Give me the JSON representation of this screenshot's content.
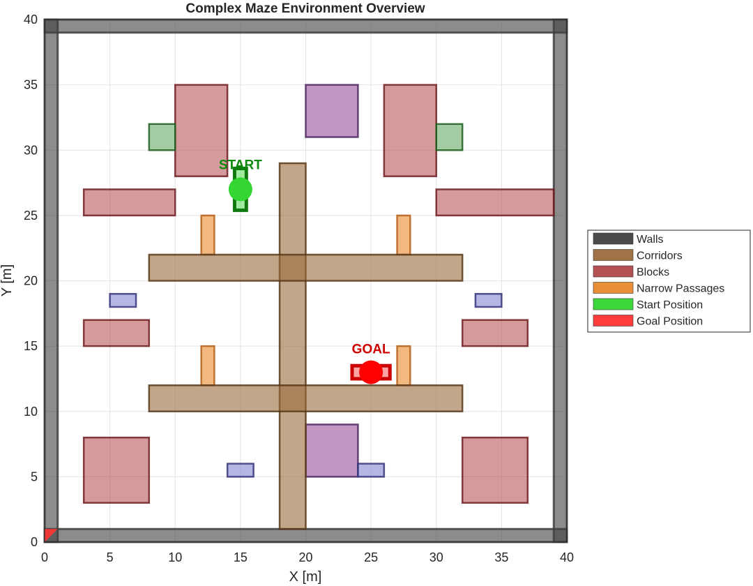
{
  "title": "Complex Maze Environment Overview",
  "axes": {
    "xlabel": "X [m]",
    "ylabel": "Y [m]",
    "xlim": [
      0,
      40
    ],
    "ylim": [
      0,
      40
    ],
    "xticks": [
      0,
      5,
      10,
      15,
      20,
      25,
      30,
      35,
      40
    ],
    "yticks": [
      0,
      5,
      10,
      15,
      20,
      25,
      30,
      35,
      40
    ],
    "grid": true
  },
  "colors": {
    "walls": "#404040",
    "corridors": "#9a6b3c",
    "blocks": "#b0474a",
    "narrow": "#e8892c",
    "start": "#33d633",
    "goal": "#ff3333",
    "purple": "#9b4f9b",
    "blue": "#7a7ad0",
    "green_block": "#4a9a4a",
    "start_text": "#0a8a0a",
    "goal_text": "#cc0000"
  },
  "legend": {
    "placement": "right",
    "items": [
      {
        "label": "Walls",
        "color": "#404040"
      },
      {
        "label": "Corridors",
        "color": "#9a6b3c"
      },
      {
        "label": "Blocks",
        "color": "#b0474a"
      },
      {
        "label": "Narrow Passages",
        "color": "#e8892c"
      },
      {
        "label": "Start Position",
        "color": "#33d633"
      },
      {
        "label": "Goal Position",
        "color": "#ff3333"
      }
    ]
  },
  "chart_data": {
    "type": "diagram",
    "walls": [
      {
        "x": 0,
        "y": 0,
        "w": 40,
        "h": 1
      },
      {
        "x": 0,
        "y": 39,
        "w": 40,
        "h": 1
      },
      {
        "x": 0,
        "y": 0,
        "w": 1,
        "h": 40
      },
      {
        "x": 39,
        "y": 0,
        "w": 1,
        "h": 40
      }
    ],
    "corridors": [
      {
        "x": 18,
        "y": 1,
        "w": 2,
        "h": 28
      },
      {
        "x": 8,
        "y": 20,
        "w": 24,
        "h": 2
      },
      {
        "x": 8,
        "y": 10,
        "w": 24,
        "h": 2
      }
    ],
    "blocks": [
      {
        "x": 10,
        "y": 28,
        "w": 4,
        "h": 7
      },
      {
        "x": 26,
        "y": 28,
        "w": 4,
        "h": 7
      },
      {
        "x": 3,
        "y": 25,
        "w": 7,
        "h": 2
      },
      {
        "x": 30,
        "y": 25,
        "w": 9,
        "h": 2
      },
      {
        "x": 3,
        "y": 15,
        "w": 5,
        "h": 2
      },
      {
        "x": 32,
        "y": 15,
        "w": 5,
        "h": 2
      },
      {
        "x": 3,
        "y": 3,
        "w": 5,
        "h": 5
      },
      {
        "x": 32,
        "y": 3,
        "w": 5,
        "h": 5
      }
    ],
    "purple_blocks": [
      {
        "x": 20,
        "y": 31,
        "w": 4,
        "h": 4
      },
      {
        "x": 20,
        "y": 5,
        "w": 4,
        "h": 4
      }
    ],
    "green_blocks": [
      {
        "x": 8,
        "y": 30,
        "w": 2,
        "h": 2
      },
      {
        "x": 30,
        "y": 30,
        "w": 2,
        "h": 2
      }
    ],
    "blue_blocks": [
      {
        "x": 5,
        "y": 18,
        "w": 2,
        "h": 1
      },
      {
        "x": 33,
        "y": 18,
        "w": 2,
        "h": 1
      },
      {
        "x": 14,
        "y": 5,
        "w": 2,
        "h": 1
      },
      {
        "x": 24,
        "y": 5,
        "w": 2,
        "h": 1
      }
    ],
    "narrow_passages": [
      {
        "x": 12,
        "y": 22,
        "w": 1,
        "h": 3
      },
      {
        "x": 27,
        "y": 22,
        "w": 1,
        "h": 3
      },
      {
        "x": 12,
        "y": 12,
        "w": 1,
        "h": 3
      },
      {
        "x": 27,
        "y": 12,
        "w": 1,
        "h": 3
      }
    ],
    "start": {
      "x": 15,
      "y": 27,
      "label": "START"
    },
    "goal": {
      "x": 25,
      "y": 13,
      "label": "GOAL"
    }
  }
}
